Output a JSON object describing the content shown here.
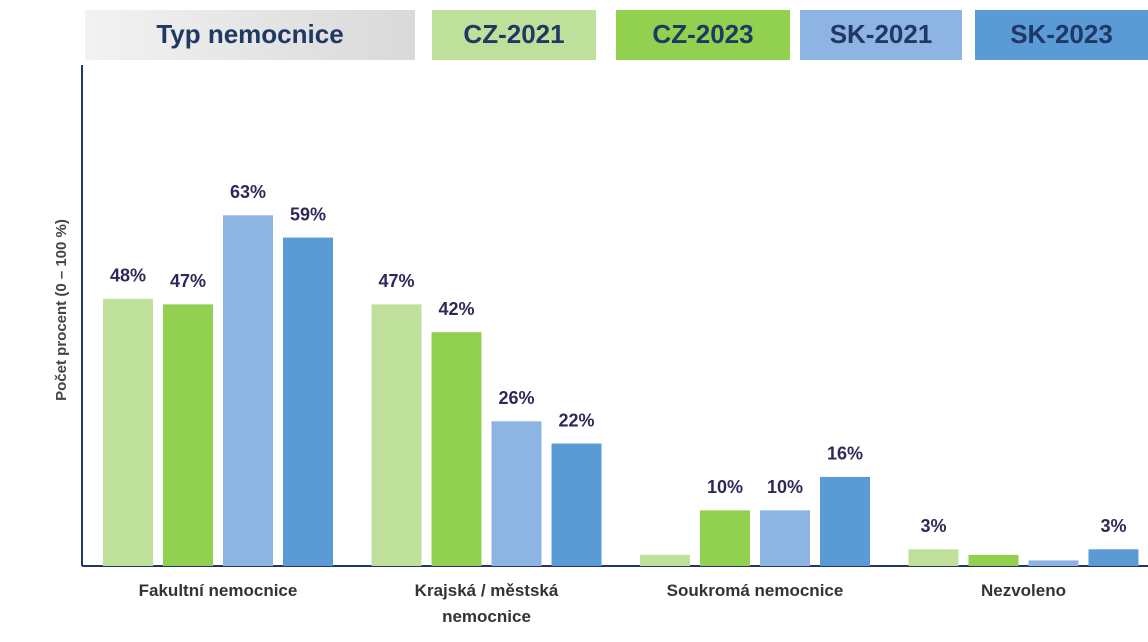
{
  "chart_data": {
    "type": "bar",
    "legend_title": "Typ nemocnice",
    "y_label": "Počet procent  (0 – 100 %)",
    "categories": [
      "Fakultní nemocnice",
      "Krajská / městská nemocnice",
      "Soukromá nemocnice",
      "Nezvoleno"
    ],
    "ylim": [
      0,
      90
    ],
    "series": [
      {
        "name": "CZ-2021",
        "color": "#bfe09a",
        "values": [
          48,
          47,
          2,
          3
        ],
        "value_labels": [
          "48%",
          "47%",
          null,
          "3%"
        ]
      },
      {
        "name": "CZ-2023",
        "color": "#92d050",
        "values": [
          47,
          42,
          10,
          2
        ],
        "value_labels": [
          "47%",
          "42%",
          "10%",
          null
        ]
      },
      {
        "name": "SK-2021",
        "color": "#8db4e2",
        "values": [
          63,
          26,
          10,
          1
        ],
        "value_labels": [
          "63%",
          "26%",
          "10%",
          null
        ]
      },
      {
        "name": "SK-2023",
        "color": "#5b9bd5",
        "values": [
          59,
          22,
          16,
          3
        ],
        "value_labels": [
          "59%",
          "22%",
          "16%",
          "3%"
        ]
      }
    ]
  }
}
